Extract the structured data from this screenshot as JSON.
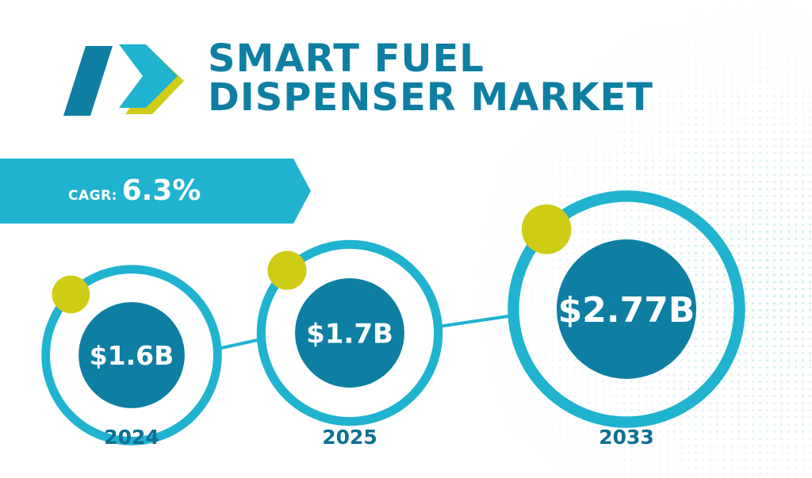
{
  "title": {
    "line1": "SMART FUEL",
    "line2": "DISPENSER MARKET"
  },
  "cagr": {
    "label": "CAGR:",
    "value": "6.3%"
  },
  "colors": {
    "primary": "#0e7fa3",
    "ring": "#20b3cf",
    "accent": "#cfcc16",
    "year": "#0e6f93"
  },
  "chart_data": {
    "type": "bubble",
    "title": "SMART FUEL DISPENSER MARKET",
    "categories": [
      "2024",
      "2025",
      "2033"
    ],
    "values": [
      1.6,
      1.7,
      2.77
    ],
    "labels": [
      "$1.6B",
      "$1.7B",
      "$2.77B"
    ],
    "unit": "USD billion",
    "annotation": "CAGR: 6.3%"
  }
}
